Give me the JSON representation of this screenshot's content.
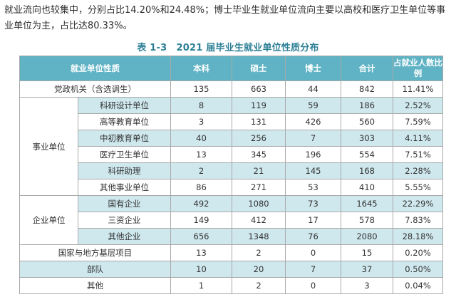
{
  "intro": "就业流向也较集中，分别占比14.20%和24.48%；博士毕业生就业单位流向主要以高校和医疗卫生单位等事业单位为主，占比达80.33%。",
  "table": {
    "caption": "表 1-3　2021 届毕业生就业单位性质分布",
    "headers": [
      "就业单位性质",
      "本科",
      "硕士",
      "博士",
      "合计",
      "占就业人数比例"
    ],
    "group_labels": {
      "public": "事业单位",
      "enterprise": "企业单位"
    },
    "rows": [
      {
        "label": "党政机关（含选调生）",
        "cells": [
          "135",
          "663",
          "44",
          "842",
          "11.41%"
        ]
      },
      {
        "label": "科研设计单位",
        "cells": [
          "8",
          "119",
          "59",
          "186",
          "2.52%"
        ]
      },
      {
        "label": "高等教育单位",
        "cells": [
          "3",
          "131",
          "426",
          "560",
          "7.59%"
        ]
      },
      {
        "label": "中初教育单位",
        "cells": [
          "40",
          "256",
          "7",
          "303",
          "4.11%"
        ]
      },
      {
        "label": "医疗卫生单位",
        "cells": [
          "13",
          "345",
          "196",
          "554",
          "7.51%"
        ]
      },
      {
        "label": "科研助理",
        "cells": [
          "2",
          "21",
          "145",
          "168",
          "2.28%"
        ]
      },
      {
        "label": "其他事业单位",
        "cells": [
          "86",
          "271",
          "53",
          "410",
          "5.55%"
        ]
      },
      {
        "label": "国有企业",
        "cells": [
          "492",
          "1080",
          "73",
          "1645",
          "22.29%"
        ]
      },
      {
        "label": "三资企业",
        "cells": [
          "149",
          "412",
          "17",
          "578",
          "7.83%"
        ]
      },
      {
        "label": "其他企业",
        "cells": [
          "656",
          "1348",
          "76",
          "2080",
          "28.18%"
        ]
      },
      {
        "label": "国家与地方基层项目",
        "cells": [
          "13",
          "2",
          "0",
          "15",
          "0.20%"
        ]
      },
      {
        "label": "部队",
        "cells": [
          "10",
          "20",
          "7",
          "37",
          "0.50%"
        ]
      },
      {
        "label": "其他",
        "cells": [
          "1",
          "2",
          "0",
          "3",
          "0.04%"
        ]
      }
    ]
  }
}
